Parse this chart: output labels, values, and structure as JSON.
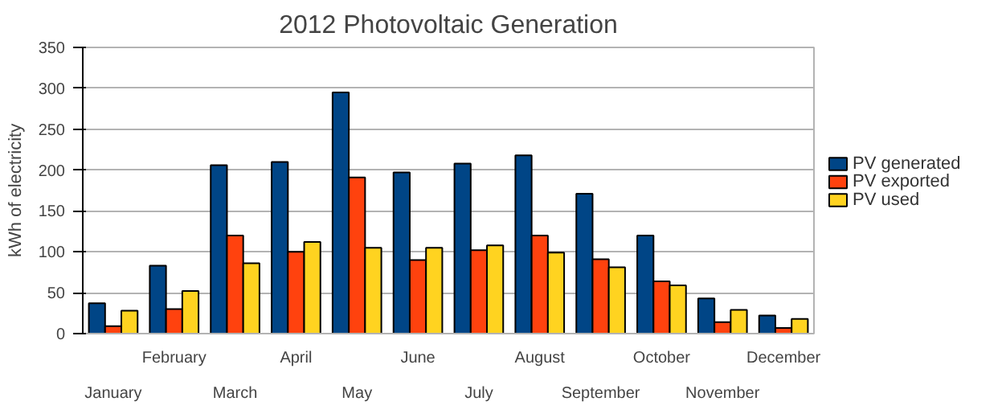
{
  "chart_data": {
    "type": "bar",
    "title": "2012 Photovoltaic Generation",
    "ylabel": "kWh of electricity",
    "categories": [
      "January",
      "February",
      "March",
      "April",
      "May",
      "June",
      "July",
      "August",
      "September",
      "October",
      "November",
      "December"
    ],
    "series": [
      {
        "name": "PV generated",
        "color": "#004586",
        "values": [
          37,
          83,
          206,
          210,
          295,
          197,
          208,
          218,
          171,
          120,
          43,
          22
        ]
      },
      {
        "name": "PV exported",
        "color": "#ff420e",
        "values": [
          9,
          30,
          120,
          100,
          191,
          90,
          102,
          120,
          91,
          64,
          14,
          7
        ]
      },
      {
        "name": "PV used",
        "color": "#ffd320",
        "values": [
          28,
          52,
          86,
          112,
          105,
          105,
          108,
          99,
          81,
          59,
          29,
          18
        ]
      }
    ],
    "ylim": [
      0,
      350
    ],
    "yticks": [
      0,
      50,
      100,
      150,
      200,
      250,
      300,
      350
    ],
    "grid": "y",
    "legend": "right"
  }
}
